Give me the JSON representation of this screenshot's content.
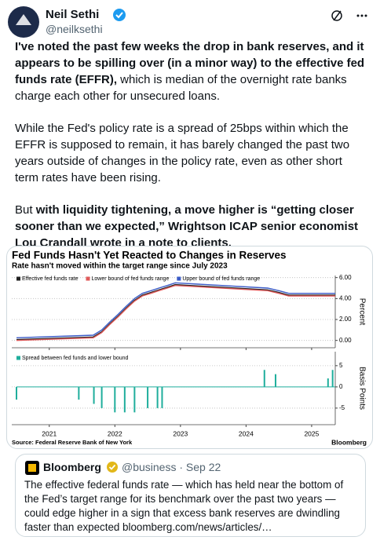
{
  "header": {
    "name": "Neil Sethi",
    "handle": "@neilksethi"
  },
  "tweet": {
    "paragraphs": [
      [
        {
          "text": "I've noted the past few weeks the drop in bank reserves, and it appears to be spilling over (in a minor way) to the effective fed funds rate (EFFR),",
          "bold": true
        },
        {
          "text": " which is median of the overnight rate banks charge each other for unsecured loans.",
          "bold": false
        }
      ],
      [
        {
          "text": "While the Fed's policy rate is a spread of 25bps within which the EFFR is supposed to remain, it has barely changed the past two years outside of changes in the policy rate, even as other short term rates have been rising.",
          "bold": false
        }
      ],
      [
        {
          "text": "But ",
          "bold": false
        },
        {
          "text": "with liquidity tightening, a move higher is “getting closer sooner than we expected,” Wrightson ICAP senior economist Lou Crandall wrote in a note to clients.",
          "bold": true
        }
      ]
    ]
  },
  "chart_data": [
    {
      "type": "line",
      "title": "Fed Funds Hasn't Yet Reacted to Changes in Reserves",
      "subtitle": "Rate hasn't moved within the target range since July 2023",
      "y_label": "Percent",
      "x": [
        2020.5,
        2021.67,
        2021.8,
        2021.92,
        2022.05,
        2022.17,
        2022.3,
        2022.42,
        2022.55,
        2022.67,
        2022.8,
        2022.92,
        2024.33,
        2024.5,
        2024.65,
        2025.36
      ],
      "series": [
        {
          "name": "Effective fed funds rate",
          "color": "#222222",
          "values": [
            0.08,
            0.33,
            0.83,
            1.58,
            2.33,
            3.08,
            3.83,
            4.33,
            4.58,
            4.83,
            5.08,
            5.33,
            4.83,
            4.58,
            4.33,
            4.33
          ]
        },
        {
          "name": "Lower bound of fed funds range",
          "color": "#e05a5a",
          "values": [
            0,
            0.25,
            0.75,
            1.5,
            2.25,
            3,
            3.75,
            4.25,
            4.5,
            4.75,
            5,
            5.25,
            4.75,
            4.5,
            4.25,
            4.25
          ]
        },
        {
          "name": "Upper bound of fed funds range",
          "color": "#3a5bc7",
          "values": [
            0.25,
            0.5,
            1,
            1.75,
            2.5,
            3.25,
            4,
            4.5,
            4.75,
            5,
            5.25,
            5.5,
            5,
            4.75,
            4.5,
            4.5
          ]
        }
      ],
      "xlim": [
        2020.5,
        2025.36
      ],
      "xticks": [
        2021,
        2022,
        2023,
        2024,
        2025
      ],
      "ylim": [
        -0.7,
        6.2
      ],
      "yticks": [
        {
          "value": 0,
          "label": "0.00"
        },
        {
          "value": 2,
          "label": "2.00"
        },
        {
          "value": 4,
          "label": "4.00"
        },
        {
          "value": 6,
          "label": "6.00"
        }
      ]
    },
    {
      "type": "bar",
      "y_label": "Basis Points",
      "source": "Source: Federal Reserve Bank of New York",
      "credit": "Bloomberg",
      "x": [
        2020.5,
        2021.45,
        2021.68,
        2021.8,
        2022.0,
        2022.15,
        2022.3,
        2022.5,
        2022.65,
        2022.72,
        2024.28,
        2024.45,
        2025.25,
        2025.32
      ],
      "series": [
        {
          "name": "Spread between fed funds and lower bound",
          "color": "#1fae9c",
          "values": [
            -3,
            -3,
            -4,
            -5,
            -6,
            -6,
            -6,
            -5,
            -5,
            -5,
            4,
            3,
            2,
            4
          ]
        }
      ],
      "xlim": [
        2020.5,
        2025.36
      ],
      "ylim": [
        -8.9,
        8.3
      ],
      "yticks": [
        -5,
        0,
        5
      ]
    }
  ],
  "quote": {
    "name": "Bloomberg",
    "handle": "@business",
    "date": "Sep 22",
    "text": "The effective federal funds rate — which has held near the bottom of the Fed’s target range for its benchmark over the past two years — could edge higher in a sign that excess bank reserves are dwindling faster than expected bloomberg.com/news/articles/…"
  }
}
